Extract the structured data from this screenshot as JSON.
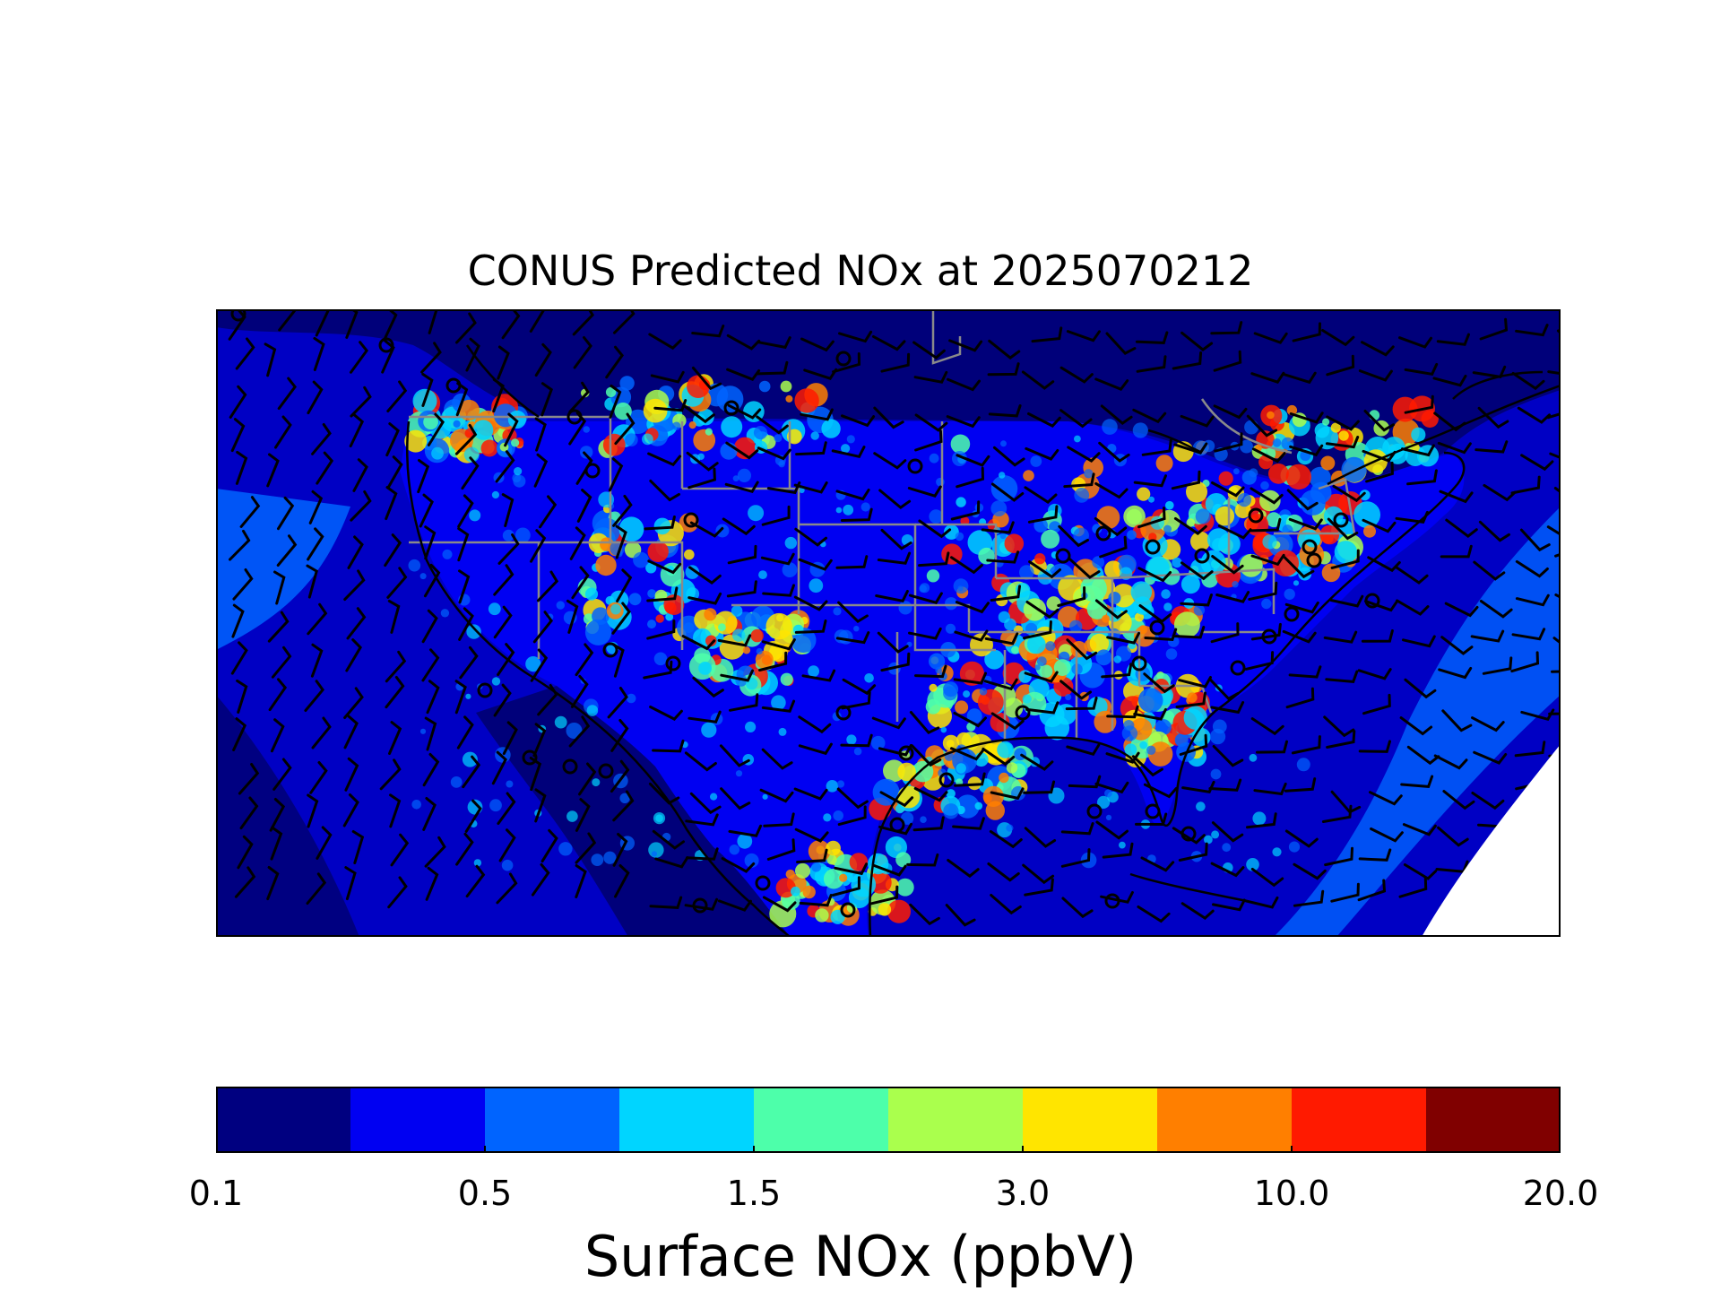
{
  "title": "CONUS Predicted NOx at 2025070212",
  "map": {
    "region": "CONUS",
    "variable": "Surface NOx",
    "overlays": [
      "wind-barbs",
      "state-borders",
      "coastlines",
      "monitoring-sites"
    ]
  },
  "colorbar": {
    "label": "Surface NOx (ppbV)",
    "tick_labels": [
      "0.1",
      "0.5",
      "1.5",
      "3.0",
      "10.0",
      "20.0"
    ],
    "colors": [
      "#000080",
      "#0000f2",
      "#0064ff",
      "#00d5ff",
      "#4dffaa",
      "#aaff4d",
      "#ffe500",
      "#ff7f00",
      "#ff1a00",
      "#800000"
    ]
  },
  "colors": {
    "ocean": "#0000c4",
    "land_low": "#00007a",
    "state_border": "#8a8a8a",
    "coastline": "#000000",
    "barb": "#000000",
    "no_data": "#ffffff"
  }
}
